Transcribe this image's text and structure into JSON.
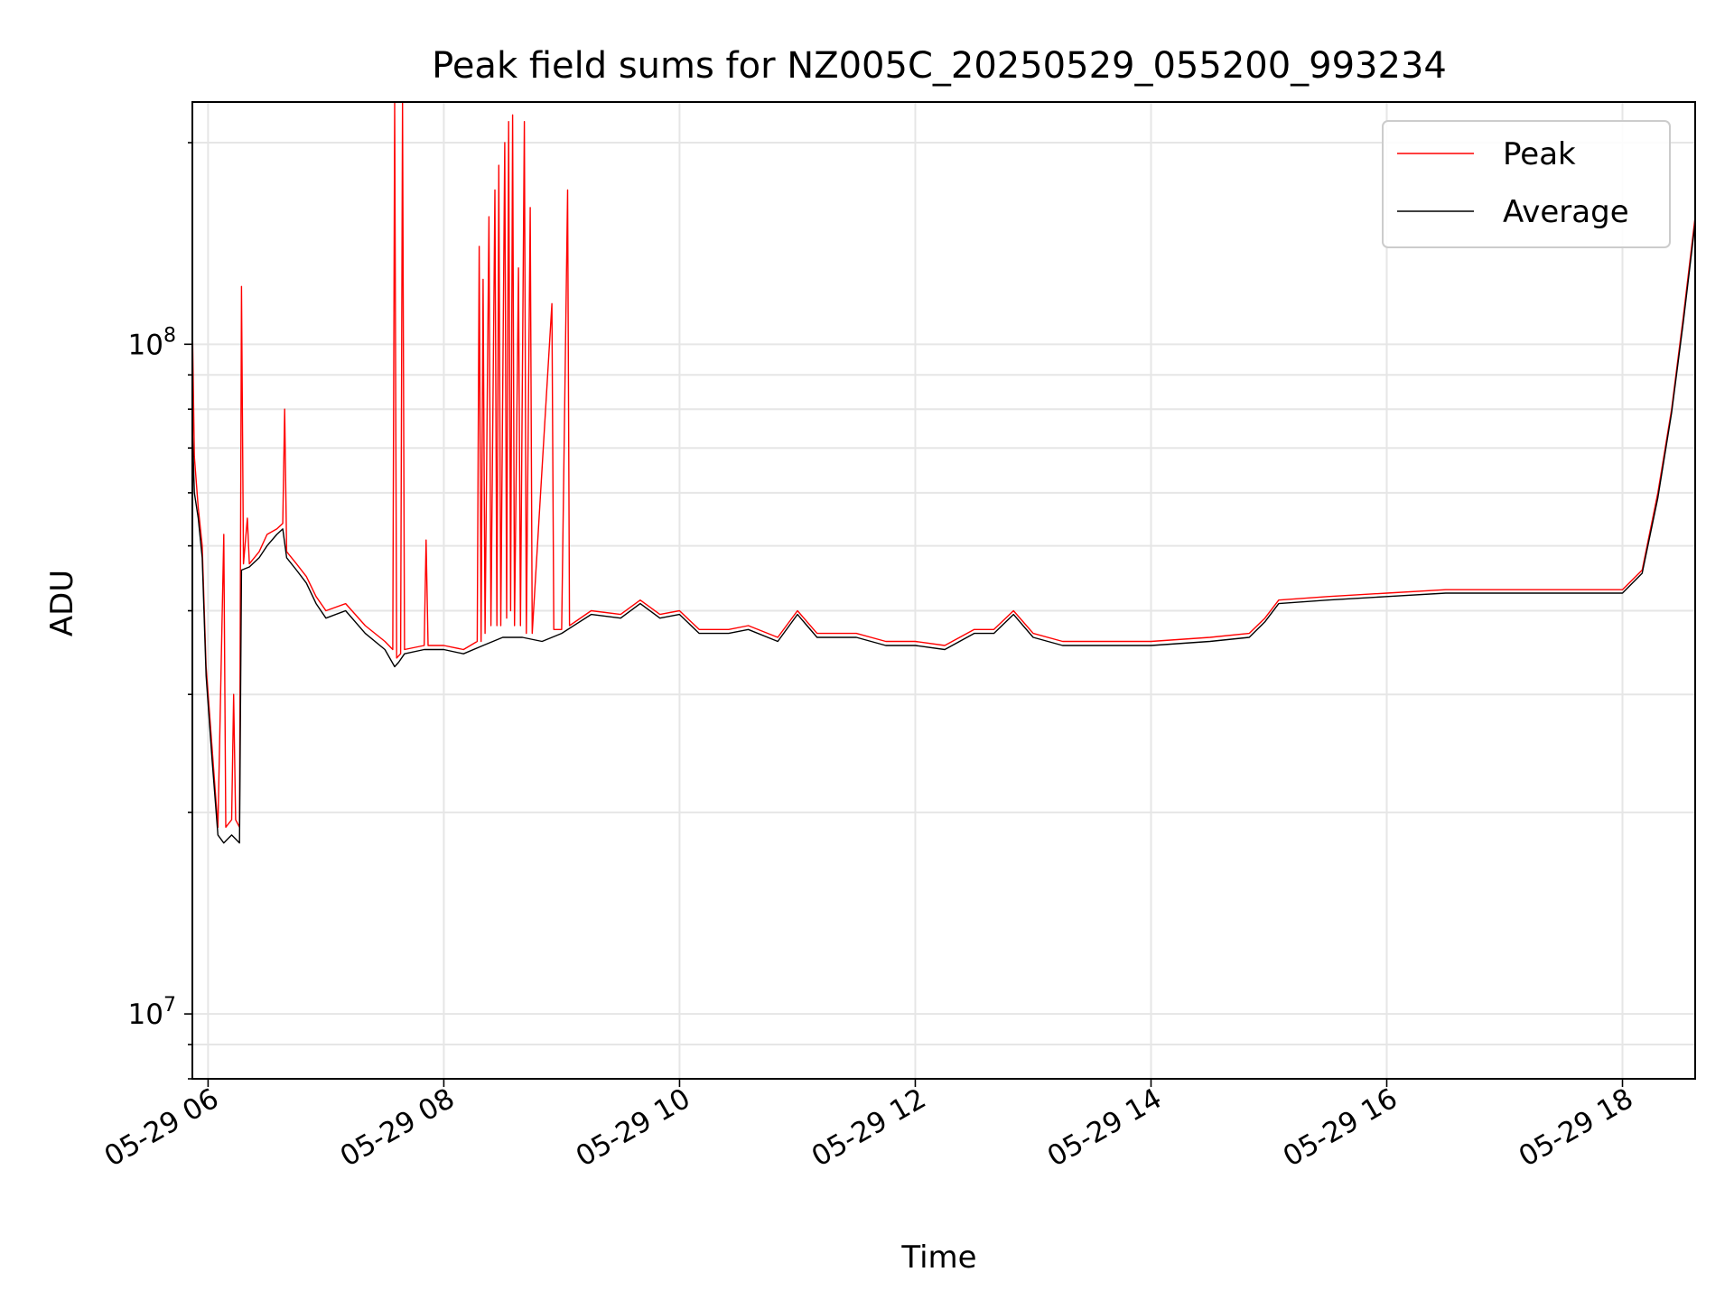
{
  "chart_data": {
    "type": "line",
    "title": "Peak field sums for NZ005C_20250529_055200_993234",
    "xlabel": "Time",
    "ylabel": "ADU",
    "y_scale": "log",
    "ylim": [
      8000000,
      230000000
    ],
    "xlim": [
      "2025-05-29 05:52",
      "2025-05-29 18:37"
    ],
    "x_ticks": [
      {
        "t": "2025-05-29 06:00",
        "label": "05-29 06"
      },
      {
        "t": "2025-05-29 08:00",
        "label": "05-29 08"
      },
      {
        "t": "2025-05-29 10:00",
        "label": "05-29 10"
      },
      {
        "t": "2025-05-29 12:00",
        "label": "05-29 12"
      },
      {
        "t": "2025-05-29 14:00",
        "label": "05-29 14"
      },
      {
        "t": "2025-05-29 16:00",
        "label": "05-29 16"
      },
      {
        "t": "2025-05-29 18:00",
        "label": "05-29 18"
      }
    ],
    "y_ticks": [
      {
        "value": 10000000,
        "base": "10",
        "exp": "7"
      },
      {
        "value": 100000000,
        "base": "10",
        "exp": "8"
      }
    ],
    "grid": true,
    "legend_position": "top-right",
    "series": [
      {
        "name": "Peak",
        "color": "#ff0000",
        "points": [
          [
            "2025-05-29 05:52",
            108000000
          ],
          [
            "2025-05-29 05:53",
            68000000
          ],
          [
            "2025-05-29 05:55",
            57000000
          ],
          [
            "2025-05-29 05:57",
            50000000
          ],
          [
            "2025-05-29 05:59",
            33000000
          ],
          [
            "2025-05-29 06:02",
            25000000
          ],
          [
            "2025-05-29 06:05",
            19000000
          ],
          [
            "2025-05-29 06:08",
            52000000
          ],
          [
            "2025-05-29 06:09",
            19000000
          ],
          [
            "2025-05-29 06:12",
            19500000
          ],
          [
            "2025-05-29 06:13",
            30000000
          ],
          [
            "2025-05-29 06:14",
            19500000
          ],
          [
            "2025-05-29 06:16",
            19000000
          ],
          [
            "2025-05-29 06:17",
            122000000
          ],
          [
            "2025-05-29 06:18",
            47000000
          ],
          [
            "2025-05-29 06:20",
            55000000
          ],
          [
            "2025-05-29 06:21",
            47000000
          ],
          [
            "2025-05-29 06:26",
            49000000
          ],
          [
            "2025-05-29 06:30",
            52000000
          ],
          [
            "2025-05-29 06:35",
            53000000
          ],
          [
            "2025-05-29 06:38",
            54000000
          ],
          [
            "2025-05-29 06:39",
            80000000
          ],
          [
            "2025-05-29 06:40",
            49000000
          ],
          [
            "2025-05-29 06:45",
            47000000
          ],
          [
            "2025-05-29 06:50",
            45000000
          ],
          [
            "2025-05-29 06:55",
            42000000
          ],
          [
            "2025-05-29 07:00",
            40000000
          ],
          [
            "2025-05-29 07:10",
            41000000
          ],
          [
            "2025-05-29 07:20",
            38000000
          ],
          [
            "2025-05-29 07:30",
            36000000
          ],
          [
            "2025-05-29 07:34",
            35000000
          ],
          [
            "2025-05-29 07:35",
            230000000
          ],
          [
            "2025-05-29 07:36",
            34000000
          ],
          [
            "2025-05-29 07:38",
            34500000
          ],
          [
            "2025-05-29 07:39",
            230000000
          ],
          [
            "2025-05-29 07:40",
            35000000
          ],
          [
            "2025-05-29 07:50",
            35500000
          ],
          [
            "2025-05-29 07:51",
            51000000
          ],
          [
            "2025-05-29 07:52",
            35500000
          ],
          [
            "2025-05-29 08:00",
            35500000
          ],
          [
            "2025-05-29 08:10",
            35000000
          ],
          [
            "2025-05-29 08:17",
            36000000
          ],
          [
            "2025-05-29 08:18",
            140000000
          ],
          [
            "2025-05-29 08:19",
            36000000
          ],
          [
            "2025-05-29 08:20",
            125000000
          ],
          [
            "2025-05-29 08:21",
            37000000
          ],
          [
            "2025-05-29 08:23",
            155000000
          ],
          [
            "2025-05-29 08:24",
            38000000
          ],
          [
            "2025-05-29 08:26",
            170000000
          ],
          [
            "2025-05-29 08:27",
            38000000
          ],
          [
            "2025-05-29 08:28",
            185000000
          ],
          [
            "2025-05-29 08:29",
            38000000
          ],
          [
            "2025-05-29 08:31",
            200000000
          ],
          [
            "2025-05-29 08:32",
            39000000
          ],
          [
            "2025-05-29 08:33",
            215000000
          ],
          [
            "2025-05-29 08:34",
            40000000
          ],
          [
            "2025-05-29 08:35",
            220000000
          ],
          [
            "2025-05-29 08:36",
            38000000
          ],
          [
            "2025-05-29 08:38",
            130000000
          ],
          [
            "2025-05-29 08:39",
            38000000
          ],
          [
            "2025-05-29 08:41",
            215000000
          ],
          [
            "2025-05-29 08:42",
            37000000
          ],
          [
            "2025-05-29 08:44",
            160000000
          ],
          [
            "2025-05-29 08:45",
            37000000
          ],
          [
            "2025-05-29 08:55",
            115000000
          ],
          [
            "2025-05-29 08:56",
            37500000
          ],
          [
            "2025-05-29 09:00",
            37500000
          ],
          [
            "2025-05-29 09:03",
            170000000
          ],
          [
            "2025-05-29 09:04",
            38000000
          ],
          [
            "2025-05-29 09:15",
            40000000
          ],
          [
            "2025-05-29 09:30",
            39500000
          ],
          [
            "2025-05-29 09:40",
            41500000
          ],
          [
            "2025-05-29 09:50",
            39500000
          ],
          [
            "2025-05-29 10:00",
            40000000
          ],
          [
            "2025-05-29 10:10",
            37500000
          ],
          [
            "2025-05-29 10:25",
            37500000
          ],
          [
            "2025-05-29 10:35",
            38000000
          ],
          [
            "2025-05-29 10:50",
            36500000
          ],
          [
            "2025-05-29 11:00",
            40000000
          ],
          [
            "2025-05-29 11:10",
            37000000
          ],
          [
            "2025-05-29 11:30",
            37000000
          ],
          [
            "2025-05-29 11:45",
            36000000
          ],
          [
            "2025-05-29 12:00",
            36000000
          ],
          [
            "2025-05-29 12:15",
            35500000
          ],
          [
            "2025-05-29 12:30",
            37500000
          ],
          [
            "2025-05-29 12:40",
            37500000
          ],
          [
            "2025-05-29 12:50",
            40000000
          ],
          [
            "2025-05-29 13:00",
            37000000
          ],
          [
            "2025-05-29 13:15",
            36000000
          ],
          [
            "2025-05-29 13:30",
            36000000
          ],
          [
            "2025-05-29 14:00",
            36000000
          ],
          [
            "2025-05-29 14:30",
            36500000
          ],
          [
            "2025-05-29 14:50",
            37000000
          ],
          [
            "2025-05-29 14:58",
            39000000
          ],
          [
            "2025-05-29 15:05",
            41500000
          ],
          [
            "2025-05-29 15:30",
            42000000
          ],
          [
            "2025-05-29 16:00",
            42500000
          ],
          [
            "2025-05-29 16:30",
            43000000
          ],
          [
            "2025-05-29 17:00",
            43000000
          ],
          [
            "2025-05-29 17:30",
            43000000
          ],
          [
            "2025-05-29 18:00",
            43000000
          ],
          [
            "2025-05-29 18:10",
            46000000
          ],
          [
            "2025-05-29 18:18",
            60000000
          ],
          [
            "2025-05-29 18:25",
            80000000
          ],
          [
            "2025-05-29 18:31",
            110000000
          ],
          [
            "2025-05-29 18:37",
            155000000
          ]
        ]
      },
      {
        "name": "Average",
        "color": "#000000",
        "points": [
          [
            "2025-05-29 05:52",
            75000000
          ],
          [
            "2025-05-29 05:53",
            60000000
          ],
          [
            "2025-05-29 05:55",
            55000000
          ],
          [
            "2025-05-29 05:57",
            48000000
          ],
          [
            "2025-05-29 05:59",
            32000000
          ],
          [
            "2025-05-29 06:02",
            24000000
          ],
          [
            "2025-05-29 06:05",
            18500000
          ],
          [
            "2025-05-29 06:08",
            18000000
          ],
          [
            "2025-05-29 06:12",
            18500000
          ],
          [
            "2025-05-29 06:16",
            18000000
          ],
          [
            "2025-05-29 06:17",
            46000000
          ],
          [
            "2025-05-29 06:21",
            46500000
          ],
          [
            "2025-05-29 06:26",
            48000000
          ],
          [
            "2025-05-29 06:30",
            50000000
          ],
          [
            "2025-05-29 06:35",
            52000000
          ],
          [
            "2025-05-29 06:38",
            53000000
          ],
          [
            "2025-05-29 06:40",
            48000000
          ],
          [
            "2025-05-29 06:45",
            46000000
          ],
          [
            "2025-05-29 06:50",
            44000000
          ],
          [
            "2025-05-29 06:55",
            41000000
          ],
          [
            "2025-05-29 07:00",
            39000000
          ],
          [
            "2025-05-29 07:10",
            40000000
          ],
          [
            "2025-05-29 07:20",
            37000000
          ],
          [
            "2025-05-29 07:30",
            35000000
          ],
          [
            "2025-05-29 07:35",
            33000000
          ],
          [
            "2025-05-29 07:37",
            33500000
          ],
          [
            "2025-05-29 07:40",
            34500000
          ],
          [
            "2025-05-29 07:50",
            35000000
          ],
          [
            "2025-05-29 08:00",
            35000000
          ],
          [
            "2025-05-29 08:10",
            34500000
          ],
          [
            "2025-05-29 08:20",
            35500000
          ],
          [
            "2025-05-29 08:30",
            36500000
          ],
          [
            "2025-05-29 08:40",
            36500000
          ],
          [
            "2025-05-29 08:50",
            36000000
          ],
          [
            "2025-05-29 09:00",
            37000000
          ],
          [
            "2025-05-29 09:15",
            39500000
          ],
          [
            "2025-05-29 09:30",
            39000000
          ],
          [
            "2025-05-29 09:40",
            41000000
          ],
          [
            "2025-05-29 09:50",
            39000000
          ],
          [
            "2025-05-29 10:00",
            39500000
          ],
          [
            "2025-05-29 10:10",
            37000000
          ],
          [
            "2025-05-29 10:25",
            37000000
          ],
          [
            "2025-05-29 10:35",
            37500000
          ],
          [
            "2025-05-29 10:50",
            36000000
          ],
          [
            "2025-05-29 11:00",
            39500000
          ],
          [
            "2025-05-29 11:10",
            36500000
          ],
          [
            "2025-05-29 11:30",
            36500000
          ],
          [
            "2025-05-29 11:45",
            35500000
          ],
          [
            "2025-05-29 12:00",
            35500000
          ],
          [
            "2025-05-29 12:15",
            35000000
          ],
          [
            "2025-05-29 12:30",
            37000000
          ],
          [
            "2025-05-29 12:40",
            37000000
          ],
          [
            "2025-05-29 12:50",
            39500000
          ],
          [
            "2025-05-29 13:00",
            36500000
          ],
          [
            "2025-05-29 13:15",
            35500000
          ],
          [
            "2025-05-29 13:30",
            35500000
          ],
          [
            "2025-05-29 14:00",
            35500000
          ],
          [
            "2025-05-29 14:30",
            36000000
          ],
          [
            "2025-05-29 14:50",
            36500000
          ],
          [
            "2025-05-29 14:58",
            38500000
          ],
          [
            "2025-05-29 15:05",
            41000000
          ],
          [
            "2025-05-29 15:30",
            41500000
          ],
          [
            "2025-05-29 16:00",
            42000000
          ],
          [
            "2025-05-29 16:30",
            42500000
          ],
          [
            "2025-05-29 17:00",
            42500000
          ],
          [
            "2025-05-29 17:30",
            42500000
          ],
          [
            "2025-05-29 18:00",
            42500000
          ],
          [
            "2025-05-29 18:10",
            45500000
          ],
          [
            "2025-05-29 18:18",
            59000000
          ],
          [
            "2025-05-29 18:25",
            79000000
          ],
          [
            "2025-05-29 18:31",
            108000000
          ],
          [
            "2025-05-29 18:37",
            152000000
          ]
        ]
      }
    ]
  }
}
